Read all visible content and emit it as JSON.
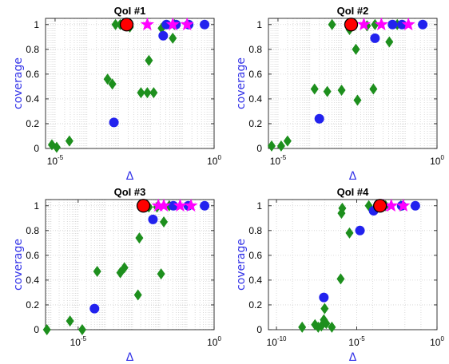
{
  "colors": {
    "circle": "#2222ee",
    "diamond": "#1d8f1d",
    "star": "#ff00ff",
    "best": "#ff0000",
    "label": "#3434e8"
  },
  "chart_data": [
    {
      "type": "scatter",
      "title": "QoI #1",
      "xlabel": "Δ",
      "ylabel": "coverage",
      "xscale": "log",
      "xlim": [
        -5.3,
        0
      ],
      "ylim": [
        0,
        1.05
      ],
      "xticks": [
        {
          "base": "10",
          "exp": "-5",
          "pos": -5
        },
        {
          "base": "10",
          "exp": "0",
          "pos": 0
        }
      ],
      "yticks": [
        0,
        0.2,
        0.4,
        0.6,
        0.8,
        1
      ],
      "grid": true,
      "series": [
        {
          "marker": "diamond",
          "points": [
            [
              -5.1,
              0.03
            ],
            [
              -4.95,
              0.01
            ],
            [
              -4.55,
              0.06
            ],
            [
              -3.35,
              0.56
            ],
            [
              -3.2,
              0.52
            ],
            [
              -3.1,
              1
            ],
            [
              -2.95,
              1
            ],
            [
              -2.65,
              0.98
            ],
            [
              -2.3,
              0.45
            ],
            [
              -2.1,
              0.45
            ],
            [
              -1.9,
              0.45
            ],
            [
              -2.05,
              0.71
            ],
            [
              -1.65,
              0.97
            ],
            [
              -1.3,
              0.89
            ],
            [
              -1.25,
              1
            ]
          ]
        },
        {
          "marker": "circle",
          "points": [
            [
              -3.15,
              0.21
            ],
            [
              -1.6,
              0.91
            ],
            [
              -1.5,
              1
            ],
            [
              -1.2,
              1
            ],
            [
              -0.8,
              1
            ],
            [
              -0.3,
              1
            ]
          ]
        },
        {
          "marker": "star",
          "points": [
            [
              -2.1,
              1
            ],
            [
              -1.3,
              1
            ],
            [
              -0.85,
              1
            ]
          ]
        },
        {
          "marker": "best",
          "points": [
            [
              -2.75,
              1
            ]
          ]
        }
      ]
    },
    {
      "type": "scatter",
      "title": "QoI #2",
      "xlabel": "Δ",
      "ylabel": "coverage",
      "xscale": "log",
      "xlim": [
        -5.3,
        0
      ],
      "ylim": [
        0,
        1.05
      ],
      "xticks": [
        {
          "base": "10",
          "exp": "-5",
          "pos": -5
        },
        {
          "base": "10",
          "exp": "0",
          "pos": 0
        }
      ],
      "yticks": [
        0,
        0.2,
        0.4,
        0.6,
        0.8,
        1
      ],
      "grid": true,
      "series": [
        {
          "marker": "diamond",
          "points": [
            [
              -5.2,
              0.02
            ],
            [
              -4.9,
              0.02
            ],
            [
              -4.7,
              0.06
            ],
            [
              -3.85,
              0.48
            ],
            [
              -3.45,
              0.46
            ],
            [
              -3,
              0.47
            ],
            [
              -2.5,
              0.39
            ],
            [
              -2,
              0.48
            ],
            [
              -3.3,
              1
            ],
            [
              -2.75,
              0.96
            ],
            [
              -2.55,
              0.8
            ],
            [
              -2.2,
              0.99
            ],
            [
              -1.95,
              1
            ],
            [
              -1.5,
              0.86
            ],
            [
              -1.25,
              1
            ]
          ]
        },
        {
          "marker": "circle",
          "points": [
            [
              -3.7,
              0.24
            ],
            [
              -1.95,
              0.89
            ],
            [
              -1.4,
              1
            ],
            [
              -1.1,
              1
            ],
            [
              -0.45,
              1
            ]
          ]
        },
        {
          "marker": "star",
          "points": [
            [
              -2.3,
              1
            ],
            [
              -1.75,
              1
            ],
            [
              -0.9,
              1
            ]
          ]
        },
        {
          "marker": "best",
          "points": [
            [
              -2.7,
              1
            ]
          ]
        }
      ]
    },
    {
      "type": "scatter",
      "title": "QoI #3",
      "xlabel": "Δ",
      "ylabel": "coverage",
      "xscale": "log",
      "xlim": [
        -6.2,
        0
      ],
      "ylim": [
        0,
        1.05
      ],
      "xticks": [
        {
          "base": "10",
          "exp": "-5",
          "pos": -5
        },
        {
          "base": "10",
          "exp": "0",
          "pos": 0
        }
      ],
      "yticks": [
        0,
        0.2,
        0.4,
        0.6,
        0.8,
        1
      ],
      "grid": true,
      "series": [
        {
          "marker": "diamond",
          "points": [
            [
              -6.15,
              0
            ],
            [
              -5.3,
              0.07
            ],
            [
              -4.85,
              0
            ],
            [
              -4.3,
              0.47
            ],
            [
              -3.45,
              0.46
            ],
            [
              -3.3,
              0.5
            ],
            [
              -2.8,
              0.28
            ],
            [
              -2.75,
              0.74
            ],
            [
              -2.5,
              1
            ],
            [
              -2.4,
              0.99
            ],
            [
              -2.1,
              0.99
            ],
            [
              -1.95,
              0.45
            ],
            [
              -1.85,
              0.87
            ],
            [
              -1.65,
              1
            ]
          ]
        },
        {
          "marker": "circle",
          "points": [
            [
              -4.4,
              0.17
            ],
            [
              -2.25,
              0.89
            ],
            [
              -1.5,
              1
            ],
            [
              -0.95,
              1
            ],
            [
              -0.35,
              1
            ]
          ]
        },
        {
          "marker": "star",
          "points": [
            [
              -2.05,
              1
            ],
            [
              -1.85,
              1
            ],
            [
              -1.25,
              1
            ],
            [
              -0.85,
              1
            ]
          ]
        },
        {
          "marker": "best",
          "points": [
            [
              -2.6,
              1
            ]
          ]
        }
      ]
    },
    {
      "type": "scatter",
      "title": "QoI #4",
      "xlabel": "Δ",
      "ylabel": "coverage",
      "xscale": "log",
      "xlim": [
        -10.5,
        0
      ],
      "ylim": [
        0,
        1.05
      ],
      "xticks": [
        {
          "base": "10",
          "exp": "-10",
          "pos": -10
        },
        {
          "base": "10",
          "exp": "-5",
          "pos": -5
        },
        {
          "base": "10",
          "exp": "0",
          "pos": 0
        }
      ],
      "yticks": [
        0,
        0.2,
        0.4,
        0.6,
        0.8,
        1
      ],
      "grid": true,
      "series": [
        {
          "marker": "diamond",
          "points": [
            [
              -8.4,
              0.02
            ],
            [
              -7.6,
              0.04
            ],
            [
              -7.4,
              0.02
            ],
            [
              -7.2,
              0.03
            ],
            [
              -7.05,
              0.08
            ],
            [
              -7,
              0.17
            ],
            [
              -6.9,
              0.05
            ],
            [
              -6.55,
              0.02
            ],
            [
              -6,
              0.41
            ],
            [
              -5.95,
              0.94
            ],
            [
              -5.9,
              0.98
            ],
            [
              -5.45,
              0.78
            ],
            [
              -4.25,
              1
            ],
            [
              -3.2,
              1
            ],
            [
              -2.25,
              1
            ]
          ]
        },
        {
          "marker": "circle",
          "points": [
            [
              -7.05,
              0.26
            ],
            [
              -4.8,
              0.8
            ],
            [
              -3.95,
              0.96
            ],
            [
              -3.4,
              1
            ],
            [
              -2.2,
              1
            ],
            [
              -1.35,
              1
            ]
          ]
        },
        {
          "marker": "star",
          "points": [
            [
              -3.35,
              1
            ],
            [
              -2.85,
              1
            ],
            [
              -2.1,
              1
            ]
          ]
        },
        {
          "marker": "best",
          "points": [
            [
              -3.55,
              1
            ]
          ]
        }
      ]
    }
  ]
}
